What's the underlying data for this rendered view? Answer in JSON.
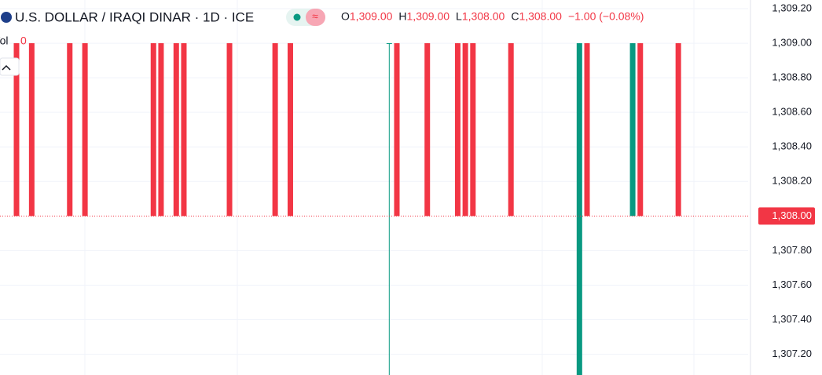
{
  "chart_data": {
    "type": "candlestick",
    "title": "U.S. DOLLAR / IRAQI DINAR · 1D · ICE",
    "legend": [
      {
        "key": "O",
        "text": "1,309.00"
      },
      {
        "key": "H",
        "text": "1,309.00"
      },
      {
        "key": "L",
        "text": "1,308.00"
      },
      {
        "key": "C",
        "text": "1,308.00"
      }
    ],
    "change": "−1.00 (−0.08%)",
    "volume": {
      "label": "Vol",
      "value": "0"
    },
    "up_color": "#089981",
    "down_color": "#f23645",
    "ylim": [
      1307.08,
      1309.25
    ],
    "yticks": [
      {
        "value": 1309.2,
        "label": "1,309.20"
      },
      {
        "value": 1309.0,
        "label": "1,309.00"
      },
      {
        "value": 1308.8,
        "label": "1,308.80"
      },
      {
        "value": 1308.6,
        "label": "1,308.60"
      },
      {
        "value": 1308.4,
        "label": "1,308.40"
      },
      {
        "value": 1308.2,
        "label": "1,308.20"
      },
      {
        "value": 1307.8,
        "label": "1,307.80"
      },
      {
        "value": 1307.6,
        "label": "1,307.60"
      },
      {
        "value": 1307.4,
        "label": "1,307.40"
      },
      {
        "value": 1307.2,
        "label": "1,307.20"
      }
    ],
    "last_price": {
      "value": 1308,
      "label": "1,308.00"
    },
    "candles": [
      [
        1309,
        1309,
        1308,
        1308
      ],
      null,
      [
        1309,
        1309,
        1308,
        1308
      ],
      null,
      null,
      null,
      null,
      [
        1309,
        1309,
        1308,
        1308
      ],
      null,
      [
        1309,
        1309,
        1308,
        1308
      ],
      null,
      null,
      null,
      null,
      null,
      null,
      null,
      null,
      [
        1309,
        1309,
        1308,
        1308
      ],
      [
        1309,
        1309,
        1308,
        1308
      ],
      null,
      [
        1309,
        1309,
        1308,
        1308
      ],
      [
        1309,
        1309,
        1308,
        1308
      ],
      null,
      null,
      null,
      null,
      null,
      [
        1309,
        1309,
        1308,
        1308
      ],
      null,
      null,
      null,
      null,
      null,
      [
        1309,
        1309,
        1308,
        1308
      ],
      null,
      [
        1309,
        1309,
        1308,
        1308
      ],
      null,
      null,
      null,
      null,
      null,
      null,
      null,
      null,
      null,
      null,
      null,
      null,
      [
        1309,
        1309,
        1307,
        1309
      ],
      [
        1309,
        1309,
        1308,
        1308
      ],
      null,
      null,
      null,
      [
        1309,
        1309,
        1308,
        1308
      ],
      null,
      null,
      null,
      [
        1309,
        1309,
        1308,
        1308
      ],
      [
        1309,
        1309,
        1308,
        1308
      ],
      [
        1309,
        1309,
        1308,
        1308
      ],
      null,
      null,
      null,
      null,
      [
        1309,
        1309,
        1308,
        1308
      ],
      null,
      null,
      null,
      null,
      null,
      null,
      null,
      null,
      [
        1307,
        1309,
        1307,
        1309
      ],
      [
        1309,
        1309,
        1308,
        1308
      ],
      null,
      null,
      null,
      null,
      null,
      [
        1308,
        1309,
        1308,
        1309
      ],
      [
        1309,
        1309,
        1308,
        1308
      ],
      null,
      null,
      null,
      null,
      [
        1309,
        1309,
        1308,
        1308
      ]
    ]
  }
}
